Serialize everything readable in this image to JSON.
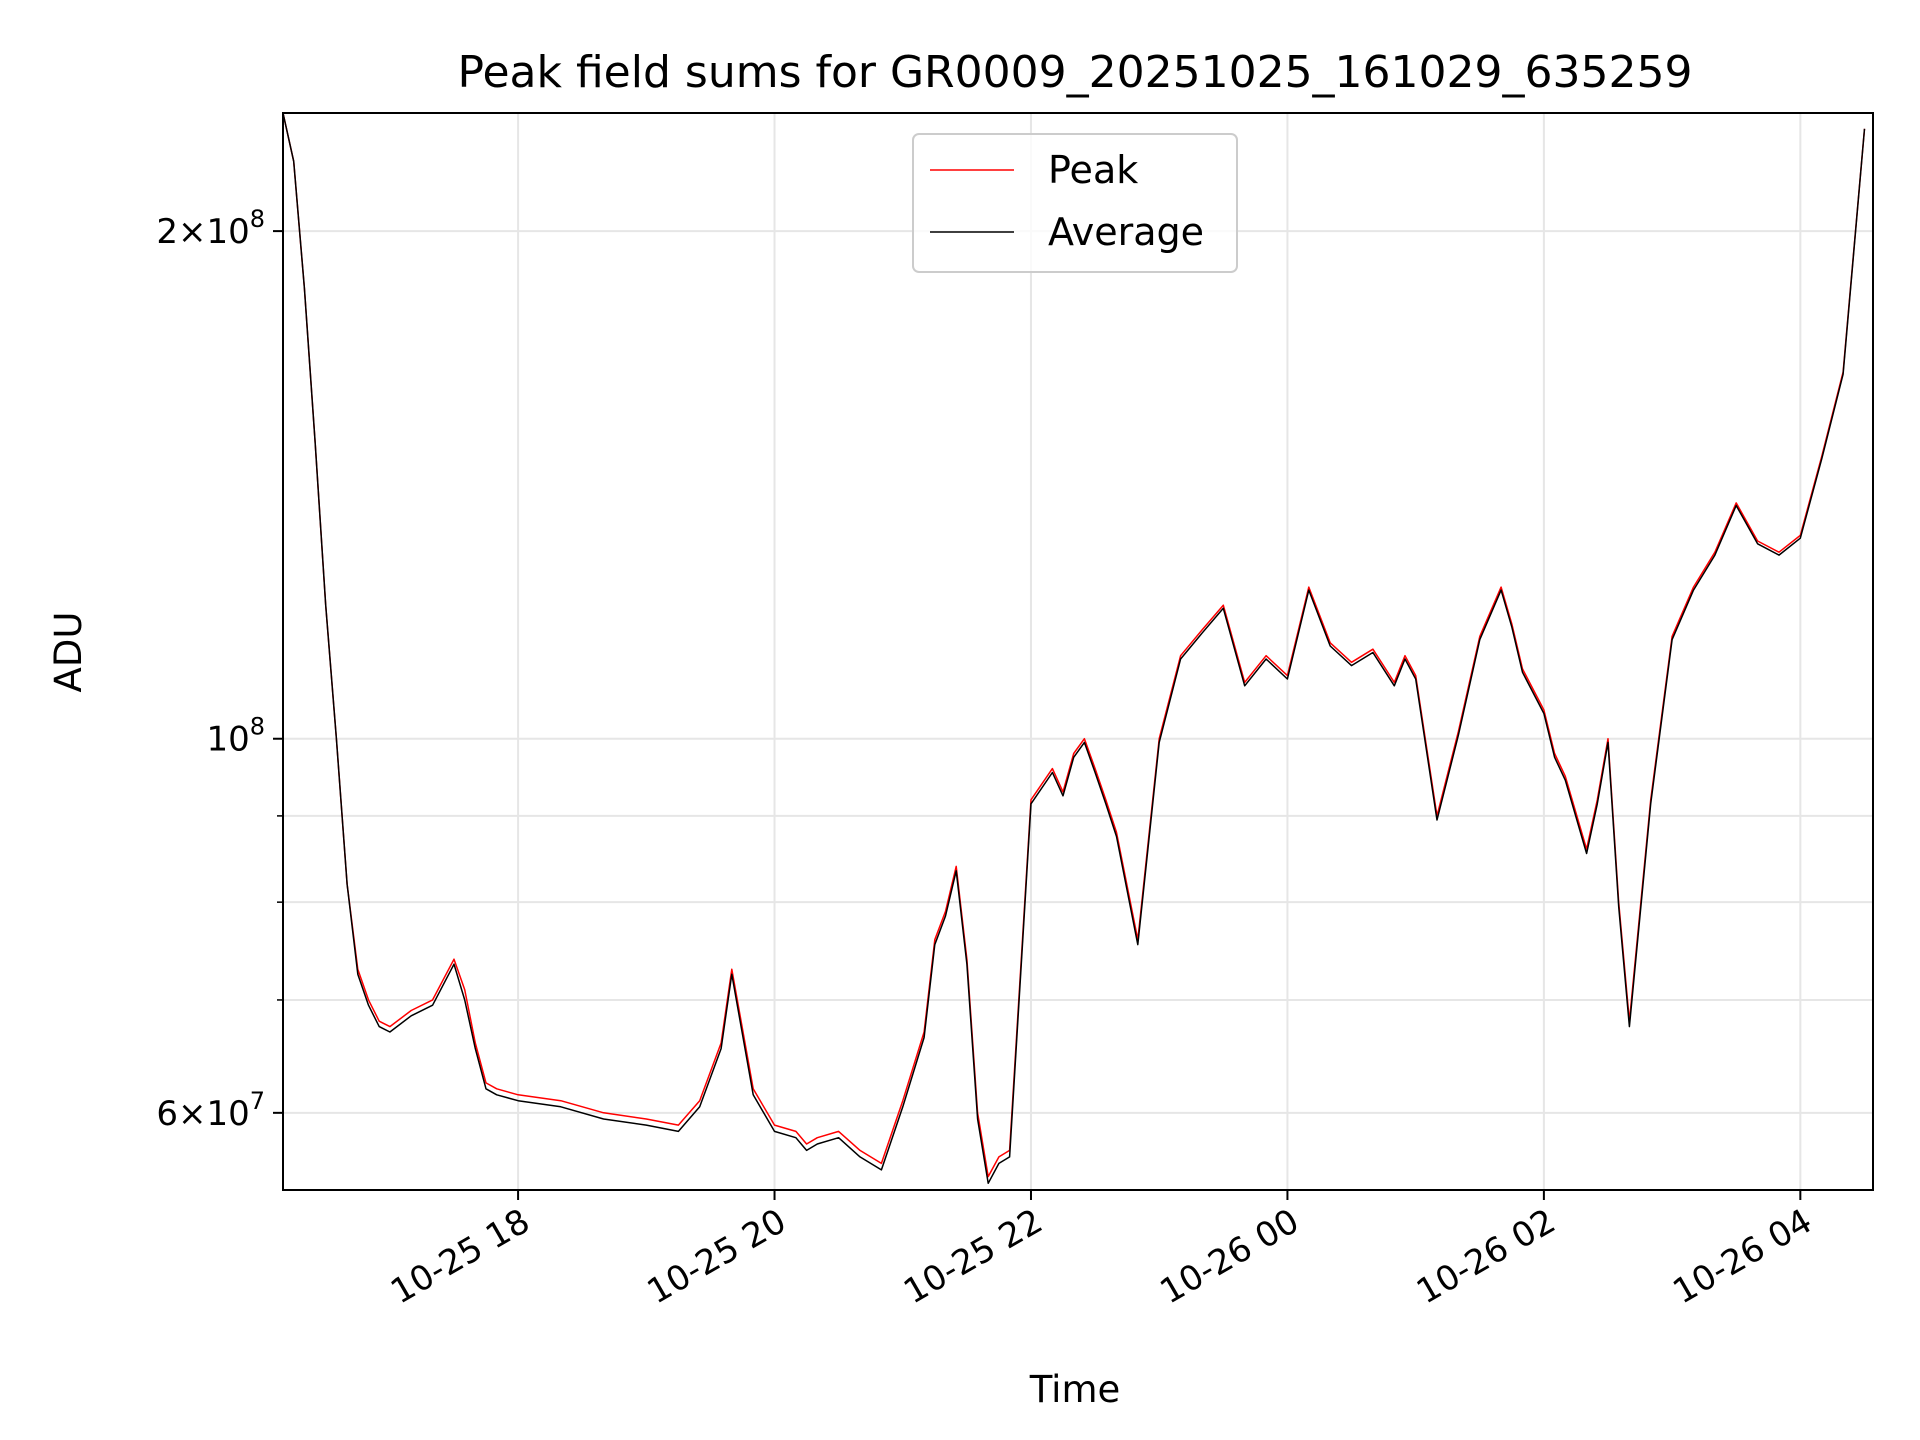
{
  "chart_data": {
    "type": "line",
    "title": "Peak field sums for GR0009_20251025_161029_635259",
    "xlabel": "Time",
    "ylabel": "ADU",
    "yscale": "log",
    "grid": true,
    "legend_position": "top-center",
    "xlim": [
      "2025-10-25 16:10",
      "2025-10-26 04:34"
    ],
    "ylim": [
      54000000,
      235000000
    ],
    "x_ticks": [
      {
        "value": "2025-10-25 18:00",
        "label": "10-25 18"
      },
      {
        "value": "2025-10-25 20:00",
        "label": "10-25 20"
      },
      {
        "value": "2025-10-25 22:00",
        "label": "10-25 22"
      },
      {
        "value": "2025-10-26 00:00",
        "label": "10-26 00"
      },
      {
        "value": "2025-10-26 02:00",
        "label": "10-26 02"
      },
      {
        "value": "2025-10-26 04:00",
        "label": "10-26 04"
      }
    ],
    "y_major_ticks": [
      {
        "value": 60000000,
        "label_mantissa": "6",
        "label_base": "10",
        "label_exp": "7"
      },
      {
        "value": 100000000,
        "label_mantissa": "",
        "label_base": "10",
        "label_exp": "8"
      },
      {
        "value": 200000000,
        "label_mantissa": "2",
        "label_base": "10",
        "label_exp": "8"
      }
    ],
    "y_minor_ticks": [
      70000000,
      80000000,
      90000000
    ],
    "x": [
      "2025-10-25 16:10",
      "2025-10-25 16:15",
      "2025-10-25 16:20",
      "2025-10-25 16:25",
      "2025-10-25 16:30",
      "2025-10-25 16:35",
      "2025-10-25 16:40",
      "2025-10-25 16:45",
      "2025-10-25 16:50",
      "2025-10-25 16:55",
      "2025-10-25 17:00",
      "2025-10-25 17:10",
      "2025-10-25 17:20",
      "2025-10-25 17:30",
      "2025-10-25 17:35",
      "2025-10-25 17:40",
      "2025-10-25 17:45",
      "2025-10-25 17:50",
      "2025-10-25 18:00",
      "2025-10-25 18:20",
      "2025-10-25 18:40",
      "2025-10-25 19:00",
      "2025-10-25 19:15",
      "2025-10-25 19:25",
      "2025-10-25 19:35",
      "2025-10-25 19:40",
      "2025-10-25 19:50",
      "2025-10-25 20:00",
      "2025-10-25 20:10",
      "2025-10-25 20:15",
      "2025-10-25 20:20",
      "2025-10-25 20:30",
      "2025-10-25 20:40",
      "2025-10-25 20:50",
      "2025-10-25 21:00",
      "2025-10-25 21:10",
      "2025-10-25 21:15",
      "2025-10-25 21:20",
      "2025-10-25 21:25",
      "2025-10-25 21:30",
      "2025-10-25 21:35",
      "2025-10-25 21:40",
      "2025-10-25 21:45",
      "2025-10-25 21:50",
      "2025-10-25 22:00",
      "2025-10-25 22:10",
      "2025-10-25 22:15",
      "2025-10-25 22:20",
      "2025-10-25 22:25",
      "2025-10-25 22:30",
      "2025-10-25 22:35",
      "2025-10-25 22:40",
      "2025-10-25 22:50",
      "2025-10-25 23:00",
      "2025-10-25 23:10",
      "2025-10-25 23:20",
      "2025-10-25 23:30",
      "2025-10-25 23:40",
      "2025-10-25 23:50",
      "2025-10-26 00:00",
      "2025-10-26 00:10",
      "2025-10-26 00:20",
      "2025-10-26 00:30",
      "2025-10-26 00:40",
      "2025-10-26 00:50",
      "2025-10-26 00:55",
      "2025-10-26 01:00",
      "2025-10-26 01:10",
      "2025-10-26 01:20",
      "2025-10-26 01:30",
      "2025-10-26 01:40",
      "2025-10-26 01:45",
      "2025-10-26 01:50",
      "2025-10-26 02:00",
      "2025-10-26 02:05",
      "2025-10-26 02:10",
      "2025-10-26 02:20",
      "2025-10-26 02:25",
      "2025-10-26 02:30",
      "2025-10-26 02:35",
      "2025-10-26 02:40",
      "2025-10-26 02:50",
      "2025-10-26 03:00",
      "2025-10-26 03:10",
      "2025-10-26 03:20",
      "2025-10-26 03:30",
      "2025-10-26 03:40",
      "2025-10-26 03:50",
      "2025-10-26 04:00",
      "2025-10-26 04:10",
      "2025-10-26 04:20",
      "2025-10-26 04:30"
    ],
    "series": [
      {
        "name": "Peak",
        "color": "#ff0000",
        "values": [
          235000000,
          220000000,
          185000000,
          150000000,
          120000000,
          100000000,
          82000000,
          73000000,
          70000000,
          68000000,
          67500000,
          69000000,
          70000000,
          74000000,
          71000000,
          66000000,
          62500000,
          62000000,
          61500000,
          61000000,
          60000000,
          59500000,
          59000000,
          61000000,
          66000000,
          73000000,
          62000000,
          59000000,
          58500000,
          57500000,
          58000000,
          58500000,
          57000000,
          56000000,
          61000000,
          67000000,
          76000000,
          79000000,
          84000000,
          74000000,
          60000000,
          55000000,
          56500000,
          57000000,
          92000000,
          96000000,
          93000000,
          98000000,
          100000000,
          96000000,
          92000000,
          88000000,
          76000000,
          100000000,
          112000000,
          116000000,
          120000000,
          108000000,
          112000000,
          109000000,
          123000000,
          114000000,
          111000000,
          113000000,
          108000000,
          112000000,
          109000000,
          90000000,
          101000000,
          115000000,
          123000000,
          117000000,
          110000000,
          104000000,
          98000000,
          95000000,
          86000000,
          92000000,
          100000000,
          80000000,
          68000000,
          92000000,
          115000000,
          123000000,
          129000000,
          138000000,
          131000000,
          129000000,
          132000000,
          147000000,
          165000000,
          230000000
        ]
      },
      {
        "name": "Average",
        "color": "#000000",
        "values": [
          235000000,
          220000000,
          185000000,
          150000000,
          120000000,
          100000000,
          82000000,
          72500000,
          69500000,
          67500000,
          67000000,
          68500000,
          69500000,
          73500000,
          70000000,
          65500000,
          62000000,
          61500000,
          61000000,
          60500000,
          59500000,
          59000000,
          58500000,
          60500000,
          65500000,
          72500000,
          61500000,
          58500000,
          58000000,
          57000000,
          57500000,
          58000000,
          56500000,
          55500000,
          60500000,
          66500000,
          75500000,
          78500000,
          83500000,
          73500000,
          59500000,
          54500000,
          56000000,
          56500000,
          91500000,
          95500000,
          92500000,
          97500000,
          99500000,
          95500000,
          91500000,
          87500000,
          75500000,
          99500000,
          111500000,
          115500000,
          119500000,
          107500000,
          111500000,
          108500000,
          122500000,
          113500000,
          110500000,
          112500000,
          107500000,
          111500000,
          108500000,
          89500000,
          100500000,
          114500000,
          122500000,
          116500000,
          109500000,
          103500000,
          97500000,
          94500000,
          85500000,
          91500000,
          99500000,
          79500000,
          67500000,
          91500000,
          114500000,
          122500000,
          128500000,
          137500000,
          130500000,
          128500000,
          131500000,
          146500000,
          164500000,
          230000000
        ]
      }
    ]
  }
}
